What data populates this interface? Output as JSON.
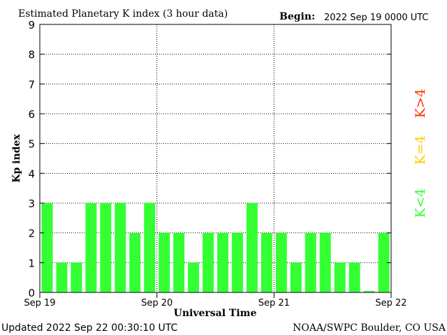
{
  "header": {
    "title": "Estimated Planetary K index (3 hour data)",
    "begin_label": "Begin:",
    "begin_value": "2022 Sep 19 0000 UTC"
  },
  "footer": {
    "updated": "Updated 2022 Sep 22 00:30:10 UTC",
    "source": "NOAA/SWPC Boulder, CO USA"
  },
  "legend": {
    "below": "K<4",
    "equal": "K=4",
    "above": "K>4"
  },
  "colors": {
    "below": "#33ff33",
    "equal": "#ffcc00",
    "above": "#ff3300",
    "axis": "#000000"
  },
  "chart_data": {
    "type": "bar",
    "title": "Estimated Planetary K index (3 hour data)",
    "xlabel": "Universal Time",
    "ylabel": "Kp index",
    "ylim": [
      0,
      9
    ],
    "yticks": [
      0,
      1,
      2,
      3,
      4,
      5,
      6,
      7,
      8,
      9
    ],
    "xticks": [
      "Sep 19",
      "Sep 20",
      "Sep 21",
      "Sep 22"
    ],
    "grid": true,
    "values": [
      3,
      1,
      1,
      3,
      3,
      3,
      2,
      3,
      2,
      2,
      1,
      2,
      2,
      2,
      3,
      2,
      2,
      1,
      2,
      2,
      1,
      1,
      0.05,
      2
    ]
  }
}
